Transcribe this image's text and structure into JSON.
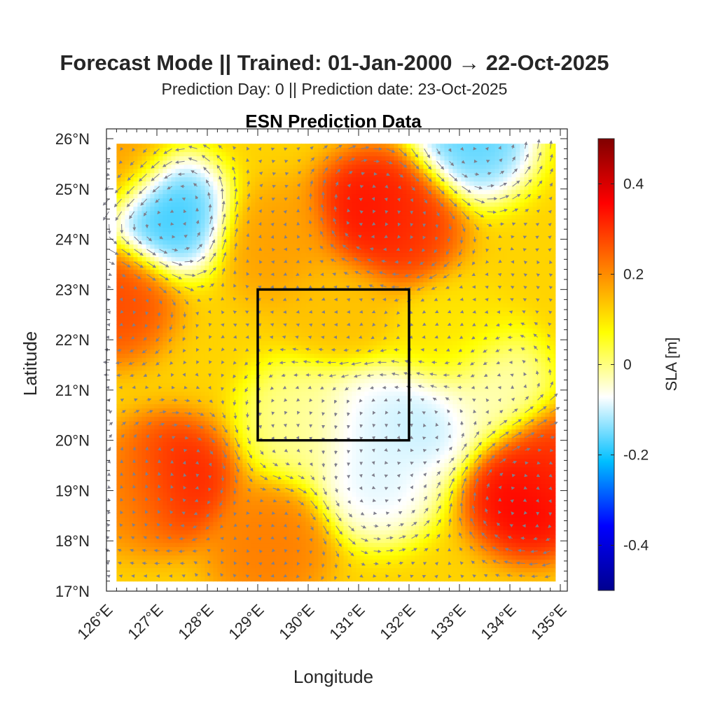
{
  "chart_data": {
    "type": "heatmap",
    "suptitle": "Forecast Mode || Trained: 01-Jan-2000 → 22-Oct-2025",
    "subtitle": "Prediction Day: 0 || Prediction date: 23-Oct-2025",
    "title": "ESN Prediction Data",
    "xlabel": "Longitude",
    "ylabel": "Latitude",
    "xlim": [
      126,
      135
    ],
    "ylim": [
      17,
      26
    ],
    "x_ticks": [
      126,
      127,
      128,
      129,
      130,
      131,
      132,
      133,
      134,
      135
    ],
    "x_tick_labels": [
      "126°E",
      "127°E",
      "128°E",
      "129°E",
      "130°E",
      "131°E",
      "132°E",
      "133°E",
      "134°E",
      "135°E"
    ],
    "y_ticks": [
      17,
      18,
      19,
      20,
      21,
      22,
      23,
      24,
      25,
      26
    ],
    "y_tick_labels": [
      "17°N",
      "18°N",
      "19°N",
      "20°N",
      "21°N",
      "22°N",
      "23°N",
      "24°N",
      "25°N",
      "26°N"
    ],
    "data_extent": {
      "lon": [
        126.2,
        134.9
      ],
      "lat": [
        17.2,
        25.9
      ]
    },
    "colorbar": {
      "label": "SLA [m]",
      "range": [
        -0.5,
        0.5
      ],
      "ticks": [
        -0.4,
        -0.2,
        0,
        0.2,
        0.4
      ],
      "tick_labels": [
        "-0.4",
        "-0.2",
        "0",
        "0.2",
        "0.4"
      ],
      "colormap": [
        "#00008f",
        "#0000ff",
        "#00bfff",
        "#ffffff",
        "#ffff00",
        "#ff7f00",
        "#ff0000",
        "#800000"
      ]
    },
    "highlight_box": {
      "lon": [
        129,
        132
      ],
      "lat": [
        20,
        23
      ],
      "color": "#000000"
    },
    "sla_features": [
      {
        "lon": 131.3,
        "lat": 24.5,
        "sla": 0.36
      },
      {
        "lon": 131.8,
        "lat": 24.3,
        "sla": 0.3
      },
      {
        "lon": 134.4,
        "lat": 18.9,
        "sla": 0.38
      },
      {
        "lon": 134.8,
        "lat": 19.4,
        "sla": 0.3
      },
      {
        "lon": 127.3,
        "lat": 19.2,
        "sla": 0.34
      },
      {
        "lon": 126.6,
        "lat": 19.0,
        "sla": 0.2
      },
      {
        "lon": 129.2,
        "lat": 17.9,
        "sla": 0.22
      },
      {
        "lon": 126.1,
        "lat": 22.8,
        "sla": 0.28
      },
      {
        "lon": 126.1,
        "lat": 25.6,
        "sla": 0.18
      },
      {
        "lon": 129.5,
        "lat": 23.9,
        "sla": 0.18
      },
      {
        "lon": 130.6,
        "lat": 22.7,
        "sla": 0.14
      },
      {
        "lon": 132.8,
        "lat": 22.0,
        "sla": 0.1
      },
      {
        "lon": 127.2,
        "lat": 24.5,
        "sla": -0.2
      },
      {
        "lon": 133.3,
        "lat": 26.0,
        "sla": -0.18
      },
      {
        "lon": 131.2,
        "lat": 20.3,
        "sla": -0.1
      },
      {
        "lon": 132.3,
        "lat": 20.4,
        "sla": -0.12
      },
      {
        "lon": 131.4,
        "lat": 19.2,
        "sla": -0.1
      },
      {
        "lon": 133.6,
        "lat": 21.0,
        "sla": -0.04
      },
      {
        "lon": 129.9,
        "lat": 20.4,
        "sla": -0.02
      }
    ],
    "sla_background": 0.12
  }
}
